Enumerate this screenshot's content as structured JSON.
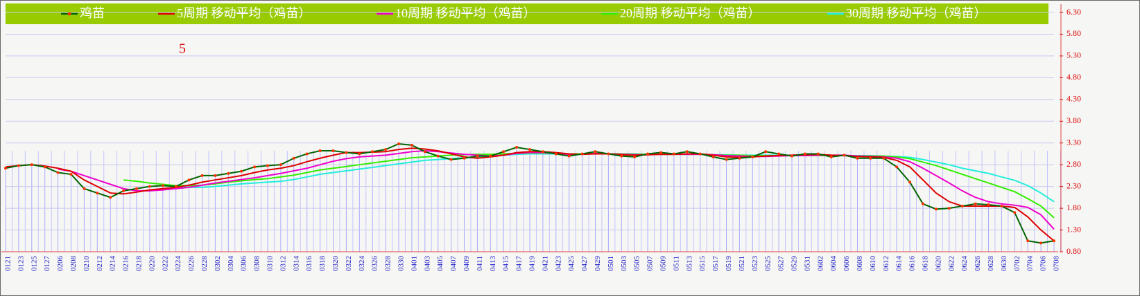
{
  "chart_data": {
    "type": "line",
    "annotation": "5",
    "categories": [
      "0121",
      "0123",
      "0125",
      "0127",
      "0206",
      "0208",
      "0210",
      "0212",
      "0214",
      "0216",
      "0218",
      "0220",
      "0222",
      "0224",
      "0226",
      "0228",
      "0302",
      "0304",
      "0306",
      "0308",
      "0310",
      "0312",
      "0314",
      "0316",
      "0318",
      "0320",
      "0322",
      "0324",
      "0326",
      "0328",
      "0330",
      "0401",
      "0403",
      "0405",
      "0407",
      "0409",
      "0411",
      "0413",
      "0415",
      "0417",
      "0419",
      "0421",
      "0423",
      "0425",
      "0427",
      "0429",
      "0501",
      "0503",
      "0505",
      "0507",
      "0509",
      "0511",
      "0513",
      "0515",
      "0517",
      "0519",
      "0521",
      "0523",
      "0525",
      "0527",
      "0529",
      "0531",
      "0602",
      "0604",
      "0606",
      "0608",
      "0610",
      "0612",
      "0614",
      "0616",
      "0618",
      "0620",
      "0622",
      "0624",
      "0626",
      "0628",
      "0630",
      "0702",
      "0704",
      "0706",
      "0708"
    ],
    "series": [
      {
        "name": "鸡苗",
        "color": "#006400",
        "marker_color": "#ff3300",
        "values": [
          2.72,
          2.78,
          2.8,
          2.75,
          2.62,
          2.58,
          2.25,
          2.15,
          2.05,
          2.2,
          2.25,
          2.3,
          2.32,
          2.3,
          2.45,
          2.55,
          2.55,
          2.6,
          2.65,
          2.75,
          2.78,
          2.8,
          2.95,
          3.05,
          3.12,
          3.12,
          3.08,
          3.05,
          3.1,
          3.15,
          3.28,
          3.25,
          3.1,
          3.0,
          2.92,
          2.95,
          3.0,
          3.0,
          3.1,
          3.2,
          3.15,
          3.1,
          3.05,
          3.0,
          3.05,
          3.1,
          3.05,
          3.0,
          2.98,
          3.05,
          3.08,
          3.05,
          3.1,
          3.05,
          2.98,
          2.92,
          2.95,
          2.98,
          3.1,
          3.05,
          3.0,
          3.05,
          3.05,
          2.98,
          3.02,
          2.95,
          2.95,
          2.95,
          2.75,
          2.4,
          1.9,
          1.78,
          1.8,
          1.85,
          1.9,
          1.88,
          1.85,
          1.7,
          1.05,
          1.0,
          1.05
        ]
      },
      {
        "name": "5周期 移动平均（鸡苗）",
        "color": "#dd0000",
        "values": [
          2.75,
          2.78,
          2.8,
          2.77,
          2.72,
          2.65,
          2.45,
          2.3,
          2.15,
          2.13,
          2.17,
          2.22,
          2.25,
          2.28,
          2.33,
          2.4,
          2.45,
          2.5,
          2.55,
          2.62,
          2.68,
          2.72,
          2.78,
          2.87,
          2.95,
          3.02,
          3.08,
          3.08,
          3.09,
          3.1,
          3.15,
          3.18,
          3.16,
          3.12,
          3.05,
          2.98,
          2.95,
          2.98,
          3.02,
          3.08,
          3.1,
          3.1,
          3.08,
          3.05,
          3.04,
          3.05,
          3.05,
          3.03,
          3.02,
          3.03,
          3.04,
          3.04,
          3.05,
          3.05,
          3.02,
          2.98,
          2.97,
          2.98,
          3.0,
          3.01,
          3.02,
          3.03,
          3.04,
          3.02,
          3.01,
          2.99,
          2.98,
          2.97,
          2.9,
          2.75,
          2.45,
          2.15,
          1.95,
          1.85,
          1.85,
          1.85,
          1.85,
          1.82,
          1.6,
          1.3,
          1.05
        ]
      },
      {
        "name": "10周期 移动平均（鸡苗）",
        "color": "#ee00cc",
        "values": [
          null,
          null,
          null,
          null,
          2.7,
          2.65,
          2.55,
          2.45,
          2.35,
          2.25,
          2.2,
          2.2,
          2.22,
          2.25,
          2.28,
          2.33,
          2.38,
          2.42,
          2.46,
          2.5,
          2.55,
          2.6,
          2.66,
          2.72,
          2.8,
          2.88,
          2.94,
          2.98,
          3.0,
          3.02,
          3.06,
          3.1,
          3.12,
          3.1,
          3.07,
          3.04,
          3.02,
          3.0,
          3.02,
          3.06,
          3.08,
          3.08,
          3.06,
          3.04,
          3.04,
          3.06,
          3.05,
          3.04,
          3.03,
          3.03,
          3.04,
          3.04,
          3.04,
          3.04,
          3.03,
          3.01,
          3.0,
          2.99,
          2.99,
          3.0,
          3.01,
          3.01,
          3.02,
          3.02,
          3.02,
          3.0,
          2.99,
          2.98,
          2.95,
          2.87,
          2.72,
          2.55,
          2.38,
          2.2,
          2.05,
          1.95,
          1.9,
          1.87,
          1.82,
          1.65,
          1.32
        ]
      },
      {
        "name": "20周期 移动平均（鸡苗）",
        "color": "#33ee00",
        "values": [
          null,
          null,
          null,
          null,
          null,
          null,
          null,
          null,
          null,
          2.45,
          2.42,
          2.38,
          2.35,
          2.32,
          2.32,
          2.33,
          2.36,
          2.4,
          2.43,
          2.46,
          2.48,
          2.52,
          2.56,
          2.62,
          2.68,
          2.72,
          2.76,
          2.8,
          2.84,
          2.88,
          2.92,
          2.96,
          2.98,
          3.0,
          3.02,
          3.03,
          3.04,
          3.04,
          3.05,
          3.06,
          3.07,
          3.07,
          3.06,
          3.05,
          3.05,
          3.05,
          3.05,
          3.05,
          3.04,
          3.04,
          3.04,
          3.04,
          3.04,
          3.04,
          3.03,
          3.02,
          3.02,
          3.01,
          3.01,
          3.01,
          3.01,
          3.01,
          3.01,
          3.01,
          3.01,
          3.0,
          3.0,
          3.0,
          2.98,
          2.94,
          2.86,
          2.78,
          2.68,
          2.58,
          2.48,
          2.38,
          2.28,
          2.18,
          2.02,
          1.85,
          1.58
        ]
      },
      {
        "name": "30周期 移动平均（鸡苗）",
        "color": "#22eedd",
        "values": [
          null,
          null,
          null,
          null,
          null,
          null,
          null,
          null,
          null,
          null,
          null,
          null,
          null,
          2.3,
          2.28,
          2.28,
          2.3,
          2.33,
          2.36,
          2.38,
          2.4,
          2.42,
          2.46,
          2.52,
          2.58,
          2.62,
          2.66,
          2.7,
          2.74,
          2.78,
          2.82,
          2.86,
          2.9,
          2.92,
          2.94,
          2.96,
          2.98,
          3.0,
          3.02,
          3.04,
          3.05,
          3.05,
          3.05,
          3.05,
          3.05,
          3.05,
          3.05,
          3.05,
          3.05,
          3.04,
          3.04,
          3.04,
          3.04,
          3.04,
          3.03,
          3.03,
          3.02,
          3.02,
          3.02,
          3.02,
          3.02,
          3.02,
          3.02,
          3.02,
          3.01,
          3.01,
          3.01,
          3.0,
          2.99,
          2.97,
          2.92,
          2.86,
          2.8,
          2.72,
          2.66,
          2.6,
          2.52,
          2.44,
          2.32,
          2.15,
          1.95
        ]
      }
    ],
    "ylim": [
      0.8,
      6.3
    ],
    "yticks": [
      {
        "value": 0.8,
        "label": "0.80"
      },
      {
        "value": 1.3,
        "label": "1.30"
      },
      {
        "value": 1.8,
        "label": "1.80"
      },
      {
        "value": 2.3,
        "label": "2.30"
      },
      {
        "value": 2.8,
        "label": "2.80"
      },
      {
        "value": 3.3,
        "label": "3.30"
      },
      {
        "value": 3.8,
        "label": "3.80"
      },
      {
        "value": 4.3,
        "label": "4.30"
      },
      {
        "value": 4.8,
        "label": "4.80"
      },
      {
        "value": 5.3,
        "label": "5.30"
      },
      {
        "value": 5.8,
        "label": "5.80"
      },
      {
        "value": 6.3,
        "label": "6.30"
      }
    ],
    "grid": true
  }
}
